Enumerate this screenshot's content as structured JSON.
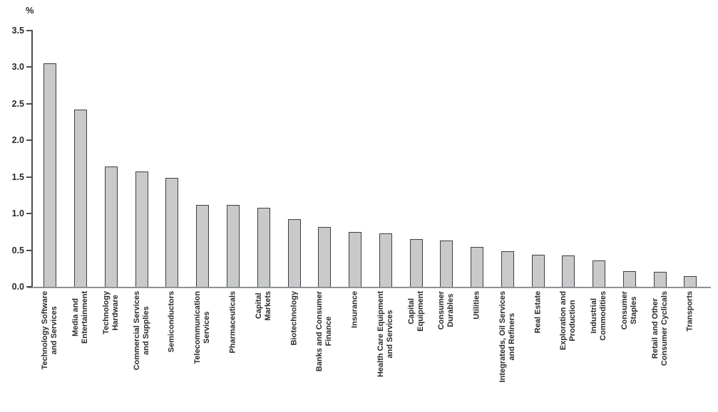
{
  "chart_data": {
    "type": "bar",
    "title": "",
    "xlabel": "",
    "ylabel": "%",
    "ylim": [
      0,
      3.5
    ],
    "ytick_step": 0.5,
    "ytick_labels": [
      "0.0",
      "0.5",
      "1.0",
      "1.5",
      "2.0",
      "2.5",
      "3.0",
      "3.5"
    ],
    "grid": false,
    "legend": "none",
    "bar_orientation": "vertical",
    "categories": [
      "Technology Software and Services",
      "Media and Entertainment",
      "Technology Hardware",
      "Commercial Services and Supplies",
      "Semiconductors",
      "Telecommunication Services",
      "Pharmaceuticals",
      "Capital Markets",
      "Biotechnology",
      "Banks and Consumer Finance",
      "Insurance",
      "Health Care Equipment and Services",
      "Capital Equipment",
      "Consumer Durables",
      "Utilities",
      "Integrateds, Oil Services and Refiners",
      "Real Estate",
      "Exploration and Production",
      "Industrial Commodities",
      "Consumer Staples",
      "Retail and Other Consumer Cyclicals",
      "Transports"
    ],
    "category_label_lines": [
      [
        "Technology Software",
        "and Services"
      ],
      [
        "Media and",
        "Entertainment"
      ],
      [
        "Technology",
        "Hardware"
      ],
      [
        "Commercial Services",
        "and Supplies"
      ],
      [
        "Semiconductors"
      ],
      [
        "Telecommunication",
        "Services"
      ],
      [
        "Pharmaceuticals"
      ],
      [
        "Capital",
        "Markets"
      ],
      [
        "Biotechnology"
      ],
      [
        "Banks and Consumer",
        "Finance"
      ],
      [
        "Insurance"
      ],
      [
        "Health Care Equipment",
        "and Services"
      ],
      [
        "Capital",
        "Equipment"
      ],
      [
        "Consumer",
        "Durables"
      ],
      [
        "Utilities"
      ],
      [
        "Integrateds, Oil Services",
        "and Refiners"
      ],
      [
        "Real Estate"
      ],
      [
        "Exploration and",
        "Production"
      ],
      [
        "Industrial",
        "Commodities"
      ],
      [
        "Consumer",
        "Staples"
      ],
      [
        "Retail and Other",
        "Consumer Cyclicals"
      ],
      [
        "Transports"
      ]
    ],
    "values": [
      3.05,
      2.42,
      1.64,
      1.58,
      1.49,
      1.12,
      1.12,
      1.08,
      0.92,
      0.82,
      0.75,
      0.73,
      0.65,
      0.63,
      0.54,
      0.49,
      0.44,
      0.43,
      0.36,
      0.21,
      0.2,
      0.15
    ]
  },
  "colors": {
    "bar_fill": "#c8c9ca",
    "bar_border": "#404042",
    "y_axis_line": "#4f4f4f",
    "baseline": "#8f9193",
    "text": "#2a2a2a",
    "background": "#ffffff"
  }
}
